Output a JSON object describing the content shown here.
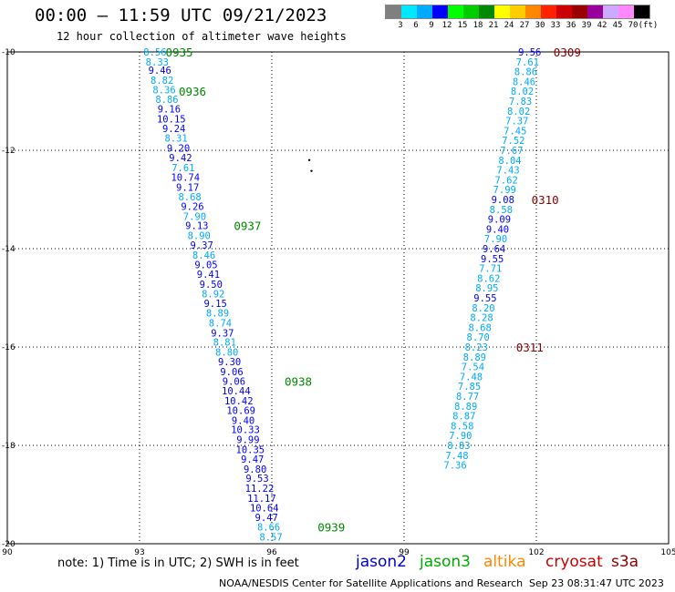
{
  "title": "00:00 – 11:59 UTC 09/21/2023",
  "subtitle": "12 hour collection of altimeter wave heights",
  "legend": {
    "ticks": [
      "3",
      "6",
      "9",
      "12",
      "15",
      "18",
      "21",
      "24",
      "27",
      "30",
      "33",
      "36",
      "39",
      "42",
      "45",
      "70",
      "(ft)"
    ],
    "colors": [
      "#7f7f7f",
      "#00e8ff",
      "#00aaff",
      "#0000ff",
      "#00ff00",
      "#00cc00",
      "#008800",
      "#ffff00",
      "#ffcc00",
      "#ff8800",
      "#ff2200",
      "#cc0000",
      "#990000",
      "#990099",
      "#ccaaff",
      "#ff88ff",
      "#000000"
    ]
  },
  "axes": {
    "x_ticks": [
      "90",
      "93",
      "96",
      "99",
      "102",
      "105"
    ],
    "y_ticks": [
      "-10",
      "-12",
      "-14",
      "-16",
      "-18",
      "-20"
    ],
    "lon_range": [
      90,
      105
    ],
    "lat_range": [
      -20,
      -10
    ]
  },
  "note": "note:  1) Time is in UTC;  2) SWH is in feet",
  "satellites": [
    {
      "name": "jason2",
      "color": "#0000cc"
    },
    {
      "name": "jason3",
      "color": "#00aa00"
    },
    {
      "name": "altika",
      "color": "#ff8800"
    },
    {
      "name": "cryosat",
      "color": "#cc0000"
    },
    {
      "name": "s3a",
      "color": "#880000"
    }
  ],
  "footer_left": "NOAA/NESDIS Center for Satellite Applications and Research",
  "footer_right": "Sep 23 08:31:47 UTC 2023",
  "tracks": [
    {
      "id": "track-west",
      "points": [
        {
          "lon": 93.35,
          "lat": -10.0,
          "v": "8.56",
          "c": "#00aaff"
        },
        {
          "lon": 93.4,
          "lat": -10.2,
          "v": "8.33",
          "c": "#00aaff"
        },
        {
          "lon": 93.46,
          "lat": -10.37,
          "v": "9.46",
          "c": "#0000ff"
        },
        {
          "lon": 93.51,
          "lat": -10.57,
          "v": "8.82",
          "c": "#00aaff"
        },
        {
          "lon": 93.56,
          "lat": -10.77,
          "v": "8.36",
          "c": "#00aaff"
        },
        {
          "lon": 93.62,
          "lat": -10.96,
          "v": "8.86",
          "c": "#00aaff"
        },
        {
          "lon": 93.67,
          "lat": -11.16,
          "v": "9.16",
          "c": "#0000ff"
        },
        {
          "lon": 93.72,
          "lat": -11.36,
          "v": "10.15",
          "c": "#0000ff"
        },
        {
          "lon": 93.78,
          "lat": -11.56,
          "v": "9.24",
          "c": "#0000ff"
        },
        {
          "lon": 93.83,
          "lat": -11.75,
          "v": "8.31",
          "c": "#00aaff"
        },
        {
          "lon": 93.88,
          "lat": -11.95,
          "v": "9.20",
          "c": "#0000ff"
        },
        {
          "lon": 93.93,
          "lat": -12.15,
          "v": "9.42",
          "c": "#0000ff"
        },
        {
          "lon": 93.99,
          "lat": -12.35,
          "v": "7.61",
          "c": "#00aaff"
        },
        {
          "lon": 94.04,
          "lat": -12.55,
          "v": "10.74",
          "c": "#0000ff"
        },
        {
          "lon": 94.09,
          "lat": -12.75,
          "v": "9.17",
          "c": "#0000ff"
        },
        {
          "lon": 94.14,
          "lat": -12.94,
          "v": "8.68",
          "c": "#00aaff"
        },
        {
          "lon": 94.2,
          "lat": -13.14,
          "v": "9.26",
          "c": "#0000ff"
        },
        {
          "lon": 94.25,
          "lat": -13.34,
          "v": "7.90",
          "c": "#00aaff"
        },
        {
          "lon": 94.3,
          "lat": -13.53,
          "v": "9.13",
          "c": "#0000ff"
        },
        {
          "lon": 94.35,
          "lat": -13.73,
          "v": "8.90",
          "c": "#00aaff"
        },
        {
          "lon": 94.41,
          "lat": -13.93,
          "v": "9.37",
          "c": "#0000ff"
        },
        {
          "lon": 94.46,
          "lat": -14.13,
          "v": "8.46",
          "c": "#00aaff"
        },
        {
          "lon": 94.51,
          "lat": -14.32,
          "v": "9.05",
          "c": "#0000ff"
        },
        {
          "lon": 94.56,
          "lat": -14.52,
          "v": "9.41",
          "c": "#0000ff"
        },
        {
          "lon": 94.62,
          "lat": -14.72,
          "v": "9.50",
          "c": "#0000ff"
        },
        {
          "lon": 94.67,
          "lat": -14.92,
          "v": "8.92",
          "c": "#00aaff"
        },
        {
          "lon": 94.72,
          "lat": -15.11,
          "v": "9.15",
          "c": "#0000ff"
        },
        {
          "lon": 94.77,
          "lat": -15.31,
          "v": "8.89",
          "c": "#00aaff"
        },
        {
          "lon": 94.83,
          "lat": -15.51,
          "v": "8.74",
          "c": "#00aaff"
        },
        {
          "lon": 94.88,
          "lat": -15.71,
          "v": "9.37",
          "c": "#0000ff"
        },
        {
          "lon": 94.93,
          "lat": -15.9,
          "v": "8.81",
          "c": "#00aaff"
        },
        {
          "lon": 94.98,
          "lat": -16.1,
          "v": "8.80",
          "c": "#00aaff"
        },
        {
          "lon": 95.04,
          "lat": -16.3,
          "v": "9.30",
          "c": "#0000ff"
        },
        {
          "lon": 95.09,
          "lat": -16.5,
          "v": "9.06",
          "c": "#0000ff"
        },
        {
          "lon": 95.14,
          "lat": -16.69,
          "v": "9.06",
          "c": "#0000ff"
        },
        {
          "lon": 95.19,
          "lat": -16.89,
          "v": "10.44",
          "c": "#0000ff"
        },
        {
          "lon": 95.25,
          "lat": -17.09,
          "v": "10.42",
          "c": "#0000ff"
        },
        {
          "lon": 95.3,
          "lat": -17.29,
          "v": "10.69",
          "c": "#0000ff"
        },
        {
          "lon": 95.35,
          "lat": -17.49,
          "v": "9.40",
          "c": "#0000ff"
        },
        {
          "lon": 95.4,
          "lat": -17.68,
          "v": "10.33",
          "c": "#0000ff"
        },
        {
          "lon": 95.46,
          "lat": -17.88,
          "v": "9.99",
          "c": "#0000ff"
        },
        {
          "lon": 95.51,
          "lat": -18.08,
          "v": "10.35",
          "c": "#0000ff"
        },
        {
          "lon": 95.56,
          "lat": -18.28,
          "v": "9.47",
          "c": "#0000ff"
        },
        {
          "lon": 95.62,
          "lat": -18.48,
          "v": "9.80",
          "c": "#0000ff"
        },
        {
          "lon": 95.67,
          "lat": -18.67,
          "v": "9.53",
          "c": "#0000ff"
        },
        {
          "lon": 95.72,
          "lat": -18.87,
          "v": "11.22",
          "c": "#0000ff"
        },
        {
          "lon": 95.77,
          "lat": -19.07,
          "v": "11.17",
          "c": "#0000ff"
        },
        {
          "lon": 95.83,
          "lat": -19.27,
          "v": "10.64",
          "c": "#0000ff"
        },
        {
          "lon": 95.88,
          "lat": -19.46,
          "v": "9.47",
          "c": "#0000ff"
        },
        {
          "lon": 95.93,
          "lat": -19.66,
          "v": "8.66",
          "c": "#00aaff"
        },
        {
          "lon": 95.98,
          "lat": -19.86,
          "v": "8.57",
          "c": "#00aaff"
        }
      ],
      "times": [
        {
          "lon": 93.9,
          "lat": -10.0,
          "t": "0935",
          "c": "#008800"
        },
        {
          "lon": 94.2,
          "lat": -10.8,
          "t": "0936",
          "c": "#008800"
        },
        {
          "lon": 95.45,
          "lat": -13.53,
          "t": "0937",
          "c": "#008800"
        },
        {
          "lon": 96.6,
          "lat": -16.69,
          "t": "0938",
          "c": "#008800"
        },
        {
          "lon": 97.35,
          "lat": -19.66,
          "t": "0939",
          "c": "#008800"
        }
      ]
    },
    {
      "id": "track-east",
      "points": [
        {
          "lon": 101.85,
          "lat": -10.0,
          "v": "9.56",
          "c": "#0000ff"
        },
        {
          "lon": 101.8,
          "lat": -10.2,
          "v": "7.61",
          "c": "#00aaff"
        },
        {
          "lon": 101.76,
          "lat": -10.4,
          "v": "8.86",
          "c": "#00aaff"
        },
        {
          "lon": 101.72,
          "lat": -10.6,
          "v": "8.46",
          "c": "#00aaff"
        },
        {
          "lon": 101.68,
          "lat": -10.8,
          "v": "8.02",
          "c": "#00aaff"
        },
        {
          "lon": 101.64,
          "lat": -11.0,
          "v": "7.83",
          "c": "#00aaff"
        },
        {
          "lon": 101.6,
          "lat": -11.2,
          "v": "8.02",
          "c": "#00aaff"
        },
        {
          "lon": 101.56,
          "lat": -11.4,
          "v": "7.37",
          "c": "#00aaff"
        },
        {
          "lon": 101.52,
          "lat": -11.6,
          "v": "7.45",
          "c": "#00aaff"
        },
        {
          "lon": 101.48,
          "lat": -11.8,
          "v": "7.52",
          "c": "#00aaff"
        },
        {
          "lon": 101.44,
          "lat": -12.0,
          "v": "7.67",
          "c": "#00aaff"
        },
        {
          "lon": 101.4,
          "lat": -12.2,
          "v": "8.04",
          "c": "#00aaff"
        },
        {
          "lon": 101.36,
          "lat": -12.4,
          "v": "7.43",
          "c": "#00aaff"
        },
        {
          "lon": 101.32,
          "lat": -12.6,
          "v": "7.62",
          "c": "#00aaff"
        },
        {
          "lon": 101.28,
          "lat": -12.8,
          "v": "7.99",
          "c": "#00aaff"
        },
        {
          "lon": 101.24,
          "lat": -13.0,
          "v": "9.08",
          "c": "#0000ff"
        },
        {
          "lon": 101.2,
          "lat": -13.2,
          "v": "8.58",
          "c": "#00aaff"
        },
        {
          "lon": 101.16,
          "lat": -13.4,
          "v": "9.09",
          "c": "#0000ff"
        },
        {
          "lon": 101.12,
          "lat": -13.6,
          "v": "9.40",
          "c": "#0000ff"
        },
        {
          "lon": 101.08,
          "lat": -13.8,
          "v": "7.90",
          "c": "#00aaff"
        },
        {
          "lon": 101.04,
          "lat": -14.0,
          "v": "9.64",
          "c": "#0000ff"
        },
        {
          "lon": 101.0,
          "lat": -14.2,
          "v": "9.55",
          "c": "#0000ff"
        },
        {
          "lon": 100.96,
          "lat": -14.4,
          "v": "7.71",
          "c": "#00aaff"
        },
        {
          "lon": 100.92,
          "lat": -14.6,
          "v": "8.62",
          "c": "#00aaff"
        },
        {
          "lon": 100.88,
          "lat": -14.8,
          "v": "8.95",
          "c": "#00aaff"
        },
        {
          "lon": 100.84,
          "lat": -15.0,
          "v": "9.55",
          "c": "#0000ff"
        },
        {
          "lon": 100.8,
          "lat": -15.2,
          "v": "8.20",
          "c": "#00aaff"
        },
        {
          "lon": 100.76,
          "lat": -15.4,
          "v": "8.28",
          "c": "#00aaff"
        },
        {
          "lon": 100.72,
          "lat": -15.6,
          "v": "8.68",
          "c": "#00aaff"
        },
        {
          "lon": 100.68,
          "lat": -15.8,
          "v": "8.70",
          "c": "#00aaff"
        },
        {
          "lon": 100.64,
          "lat": -16.0,
          "v": "8.23",
          "c": "#00aaff"
        },
        {
          "lon": 100.6,
          "lat": -16.2,
          "v": "8.89",
          "c": "#00aaff"
        },
        {
          "lon": 100.56,
          "lat": -16.4,
          "v": "7.54",
          "c": "#00aaff"
        },
        {
          "lon": 100.52,
          "lat": -16.6,
          "v": "7.48",
          "c": "#00aaff"
        },
        {
          "lon": 100.48,
          "lat": -16.8,
          "v": "7.85",
          "c": "#00aaff"
        },
        {
          "lon": 100.44,
          "lat": -17.0,
          "v": "8.77",
          "c": "#00aaff"
        },
        {
          "lon": 100.4,
          "lat": -17.2,
          "v": "8.89",
          "c": "#00aaff"
        },
        {
          "lon": 100.36,
          "lat": -17.4,
          "v": "8.87",
          "c": "#00aaff"
        },
        {
          "lon": 100.32,
          "lat": -17.6,
          "v": "8.58",
          "c": "#00aaff"
        },
        {
          "lon": 100.28,
          "lat": -17.8,
          "v": "7.90",
          "c": "#00aaff"
        },
        {
          "lon": 100.24,
          "lat": -18.0,
          "v": "8.83",
          "c": "#00aaff"
        },
        {
          "lon": 100.2,
          "lat": -18.2,
          "v": "7.48",
          "c": "#00aaff"
        },
        {
          "lon": 100.16,
          "lat": -18.4,
          "v": "7.36",
          "c": "#00aaff"
        }
      ],
      "times": [
        {
          "lon": 102.7,
          "lat": -10.0,
          "t": "0309",
          "c": "#880000"
        },
        {
          "lon": 102.2,
          "lat": -13.0,
          "t": "0310",
          "c": "#880000"
        },
        {
          "lon": 101.85,
          "lat": -16.0,
          "t": "0311",
          "c": "#880000"
        }
      ]
    }
  ]
}
